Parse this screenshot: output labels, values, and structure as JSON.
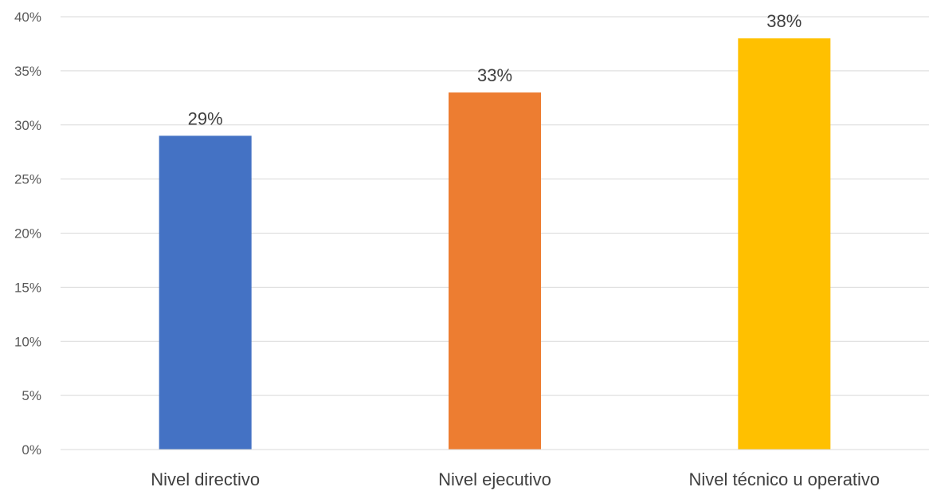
{
  "chart_data": {
    "type": "bar",
    "categories": [
      "Nivel directivo",
      "Nivel ejecutivo",
      "Nivel técnico u operativo"
    ],
    "values": [
      29,
      33,
      38
    ],
    "value_labels": [
      "29%",
      "33%",
      "38%"
    ],
    "colors": [
      "#4472c4",
      "#ed7d31",
      "#ffc000"
    ],
    "ylim": [
      0,
      40
    ],
    "yticks": [
      0,
      5,
      10,
      15,
      20,
      25,
      30,
      35,
      40
    ],
    "ytick_labels": [
      "0%",
      "5%",
      "10%",
      "15%",
      "20%",
      "25%",
      "30%",
      "35%",
      "40%"
    ],
    "grid": true,
    "legend": false,
    "title": "",
    "xlabel": "",
    "ylabel": ""
  }
}
